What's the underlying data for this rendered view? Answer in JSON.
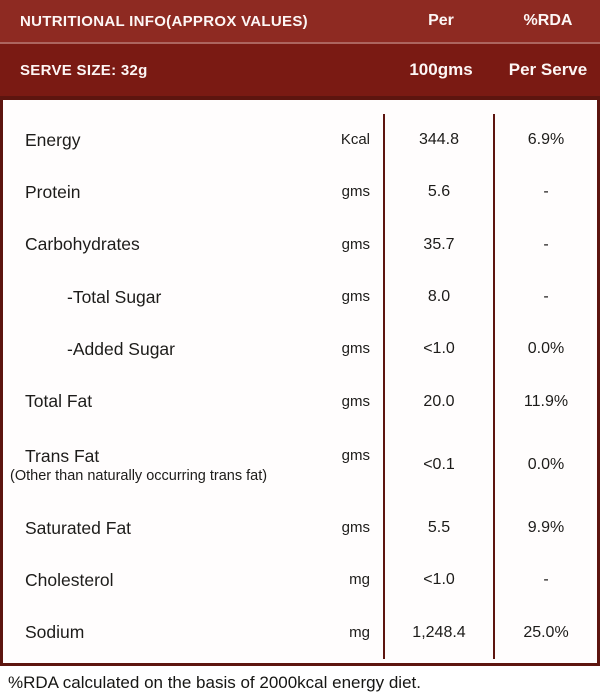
{
  "colors": {
    "header_top_bg": "#8e2a22",
    "header_bottom_bg": "#7a1a13",
    "table_border": "#5d150f",
    "header_text": "#fdf6f5",
    "body_text": "#1d1c1a",
    "page_bg": "#ffffff"
  },
  "header": {
    "row1": {
      "title": "NUTRITIONAL INFO(APPROX VALUES)",
      "col2": "Per",
      "col3": "%RDA"
    },
    "row2": {
      "title": "SERVE SIZE: 32g",
      "col2": "100gms",
      "col3": "Per Serve"
    }
  },
  "rows": [
    {
      "label": "Energy",
      "unit": "Kcal",
      "per100": "344.8",
      "rda": "6.9%"
    },
    {
      "label": "Protein",
      "unit": "gms",
      "per100": "5.6",
      "rda": "-"
    },
    {
      "label": "Carbohydrates",
      "unit": "gms",
      "per100": "35.7",
      "rda": "-"
    },
    {
      "label": "-Total Sugar",
      "unit": "gms",
      "per100": "8.0",
      "rda": "-"
    },
    {
      "label": "-Added Sugar",
      "unit": "gms",
      "per100": "<1.0",
      "rda": "0.0%"
    },
    {
      "label": "Total Fat",
      "unit": "gms",
      "per100": "20.0",
      "rda": "11.9%"
    },
    {
      "label": "Trans Fat",
      "note": "(Other than naturally occurring trans fat)",
      "unit": "gms",
      "per100": "<0.1",
      "rda": "0.0%"
    },
    {
      "label": "Saturated Fat",
      "unit": "gms",
      "per100": "5.5",
      "rda": "9.9%"
    },
    {
      "label": "Cholesterol",
      "unit": "mg",
      "per100": "<1.0",
      "rda": "-"
    },
    {
      "label": "Sodium",
      "unit": "mg",
      "per100": "1,248.4",
      "rda": "25.0%"
    }
  ],
  "footer": {
    "note": "%RDA calculated on the basis of 2000kcal energy diet."
  }
}
